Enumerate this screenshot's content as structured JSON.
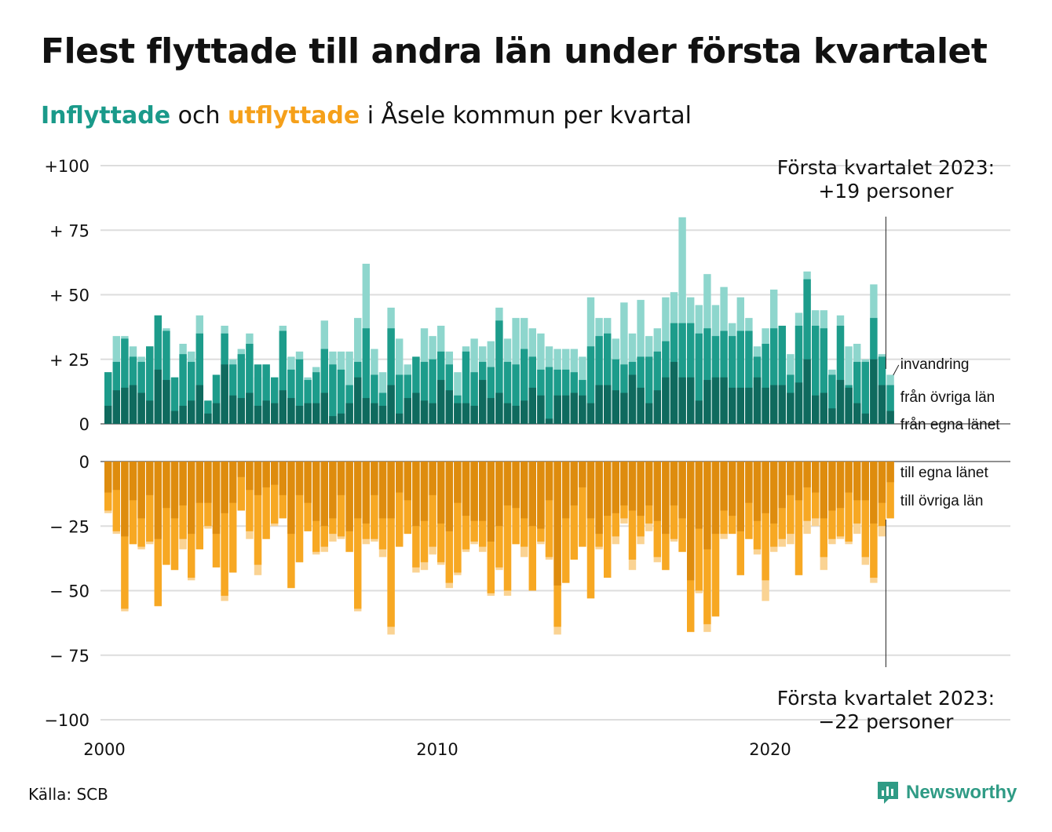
{
  "title": "Flest flyttade till andra län under första kvartalet",
  "subtitle": {
    "in_word": "Inflyttade",
    "and": " och ",
    "out_word": "utflyttade",
    "rest": " i Åsele kommun per kvartal"
  },
  "source": "Källa: SCB",
  "logo": "Newsworthy",
  "colors": {
    "in_local": "#0f6a5e",
    "in_other": "#1d9c8b",
    "in_immigration": "#8ed6cd",
    "out_local": "#de8c0e",
    "out_other": "#f7a823",
    "out_emigration": "#fad393",
    "grid": "#dddddd",
    "text": "#111111"
  },
  "annotation_top": {
    "line1": "Första kvartalet 2023:",
    "line2": "+19 personer"
  },
  "annotation_bottom": {
    "line1": "Första kvartalet 2023:",
    "line2": "−22 personer"
  },
  "chart_data": {
    "type": "bar",
    "x_unit": "quarter",
    "x_start": "2000 Q1",
    "x_end": "2023 Q1",
    "y_ticks_top": [
      "+100",
      "+ 75",
      "+ 50",
      "+ 25",
      "0"
    ],
    "y_ticks_bottom": [
      "0",
      "− 25",
      "− 50",
      "− 75",
      "−100"
    ],
    "ylim_in": [
      0,
      100
    ],
    "ylim_out": [
      -100,
      0
    ],
    "x_ticks": [
      {
        "label": "2000",
        "year": 2000
      },
      {
        "label": "2010",
        "year": 2010
      },
      {
        "label": "2020",
        "year": 2020
      }
    ],
    "in_labels": [
      "invandring",
      "från övriga län",
      "från egna länet"
    ],
    "out_labels": [
      "till egna länet",
      "till övriga län"
    ],
    "inflyttade": {
      "totals": [
        20,
        34,
        34,
        30,
        26,
        30,
        42,
        37,
        18,
        31,
        28,
        42,
        9,
        19,
        38,
        25,
        29,
        35,
        18,
        23,
        18,
        38,
        26,
        28,
        18,
        22,
        40,
        28,
        28,
        28,
        41,
        62,
        29,
        20,
        45,
        33,
        23,
        26,
        37,
        34,
        38,
        28,
        20,
        30,
        33,
        30,
        32,
        45,
        33,
        41,
        41,
        37,
        35,
        30,
        29,
        29,
        29,
        26,
        49,
        41,
        41,
        33,
        47,
        35,
        48,
        34,
        37,
        49,
        51,
        80,
        49,
        46,
        58,
        46,
        53,
        39,
        49,
        41,
        30,
        37,
        52,
        37,
        27,
        43,
        59,
        44,
        44,
        21,
        42,
        30,
        31,
        25,
        54,
        27,
        19
      ],
      "from_other_counties": [
        20,
        24,
        33,
        26,
        24,
        30,
        42,
        36,
        18,
        27,
        24,
        35,
        9,
        19,
        35,
        23,
        27,
        31,
        23,
        23,
        18,
        36,
        21,
        25,
        17,
        20,
        29,
        23,
        21,
        15,
        24,
        37,
        19,
        12,
        37,
        19,
        19,
        26,
        24,
        25,
        28,
        23,
        11,
        28,
        20,
        24,
        22,
        40,
        24,
        23,
        29,
        26,
        21,
        22,
        21,
        21,
        20,
        17,
        30,
        34,
        35,
        25,
        23,
        24,
        26,
        26,
        28,
        32,
        39,
        39,
        39,
        35,
        37,
        34,
        36,
        34,
        36,
        36,
        26,
        31,
        37,
        38,
        19,
        38,
        56,
        38,
        37,
        19,
        38,
        15,
        24,
        24,
        41,
        26,
        15
      ],
      "from_own_county": [
        7,
        13,
        14,
        15,
        12,
        9,
        21,
        17,
        5,
        7,
        9,
        15,
        4,
        8,
        23,
        11,
        10,
        12,
        7,
        9,
        8,
        13,
        10,
        7,
        8,
        8,
        12,
        3,
        4,
        8,
        18,
        10,
        8,
        7,
        15,
        4,
        10,
        12,
        9,
        8,
        17,
        13,
        8,
        8,
        7,
        17,
        10,
        12,
        8,
        7,
        9,
        14,
        11,
        2,
        11,
        11,
        12,
        11,
        8,
        15,
        15,
        13,
        12,
        19,
        14,
        8,
        13,
        18,
        24,
        18,
        18,
        9,
        17,
        18,
        18,
        14,
        14,
        14,
        18,
        14,
        15,
        15,
        12,
        16,
        25,
        11,
        12,
        6,
        17,
        14,
        8,
        4,
        25,
        15,
        5
      ]
    },
    "utflyttade": {
      "totals": [
        -20,
        -28,
        -58,
        -32,
        -34,
        -32,
        -56,
        -40,
        -42,
        -34,
        -46,
        -34,
        -26,
        -41,
        -54,
        -43,
        -19,
        -30,
        -44,
        -30,
        -25,
        -22,
        -49,
        -39,
        -27,
        -36,
        -35,
        -31,
        -30,
        -35,
        -58,
        -32,
        -31,
        -37,
        -67,
        -33,
        -28,
        -43,
        -42,
        -36,
        -40,
        -49,
        -44,
        -35,
        -32,
        -35,
        -52,
        -42,
        -52,
        -32,
        -37,
        -50,
        -32,
        -38,
        -67,
        -47,
        -38,
        -33,
        -53,
        -34,
        -45,
        -32,
        -24,
        -42,
        -32,
        -27,
        -39,
        -42,
        -31,
        -35,
        -66,
        -51,
        -66,
        -60,
        -30,
        -28,
        -44,
        -30,
        -36,
        -54,
        -35,
        -33,
        -32,
        -44,
        -28,
        -25,
        -42,
        -32,
        -30,
        -32,
        -28,
        -40,
        -47,
        -29,
        -22
      ],
      "to_other_counties": [
        -19,
        -27,
        -57,
        -32,
        -33,
        -31,
        -56,
        -40,
        -42,
        -30,
        -45,
        -34,
        -25,
        -41,
        -52,
        -43,
        -19,
        -27,
        -40,
        -30,
        -24,
        -22,
        -49,
        -39,
        -27,
        -35,
        -33,
        -28,
        -29,
        -35,
        -57,
        -30,
        -30,
        -34,
        -64,
        -33,
        -28,
        -41,
        -39,
        -33,
        -39,
        -47,
        -43,
        -34,
        -31,
        -33,
        -51,
        -41,
        -50,
        -32,
        -33,
        -50,
        -31,
        -37,
        -64,
        -47,
        -38,
        -33,
        -53,
        -33,
        -45,
        -29,
        -22,
        -38,
        -29,
        -24,
        -37,
        -42,
        -30,
        -35,
        -66,
        -50,
        -63,
        -60,
        -28,
        -28,
        -44,
        -30,
        -34,
        -46,
        -33,
        -30,
        -28,
        -44,
        -23,
        -22,
        -37,
        -30,
        -29,
        -31,
        -24,
        -37,
        -45,
        -25,
        -22
      ],
      "to_own_county": [
        -12,
        -11,
        -29,
        -15,
        -22,
        -13,
        -30,
        -18,
        -22,
        -17,
        -28,
        -16,
        -16,
        -28,
        -20,
        -16,
        -6,
        -11,
        -13,
        -10,
        -9,
        -13,
        -28,
        -13,
        -16,
        -23,
        -25,
        -22,
        -13,
        -27,
        -22,
        -24,
        -13,
        -22,
        -22,
        -12,
        -15,
        -25,
        -23,
        -13,
        -24,
        -27,
        -16,
        -21,
        -23,
        -23,
        -31,
        -25,
        -17,
        -18,
        -22,
        -25,
        -26,
        -15,
        -48,
        -22,
        -17,
        -10,
        -22,
        -28,
        -21,
        -20,
        -17,
        -19,
        -21,
        -17,
        -23,
        -28,
        -17,
        -22,
        -46,
        -26,
        -34,
        -28,
        -19,
        -21,
        -27,
        -16,
        -23,
        -20,
        -24,
        -18,
        -13,
        -15,
        -10,
        -12,
        -22,
        -19,
        -18,
        -12,
        -15,
        -15,
        -24,
        -16,
        -8
      ]
    }
  }
}
